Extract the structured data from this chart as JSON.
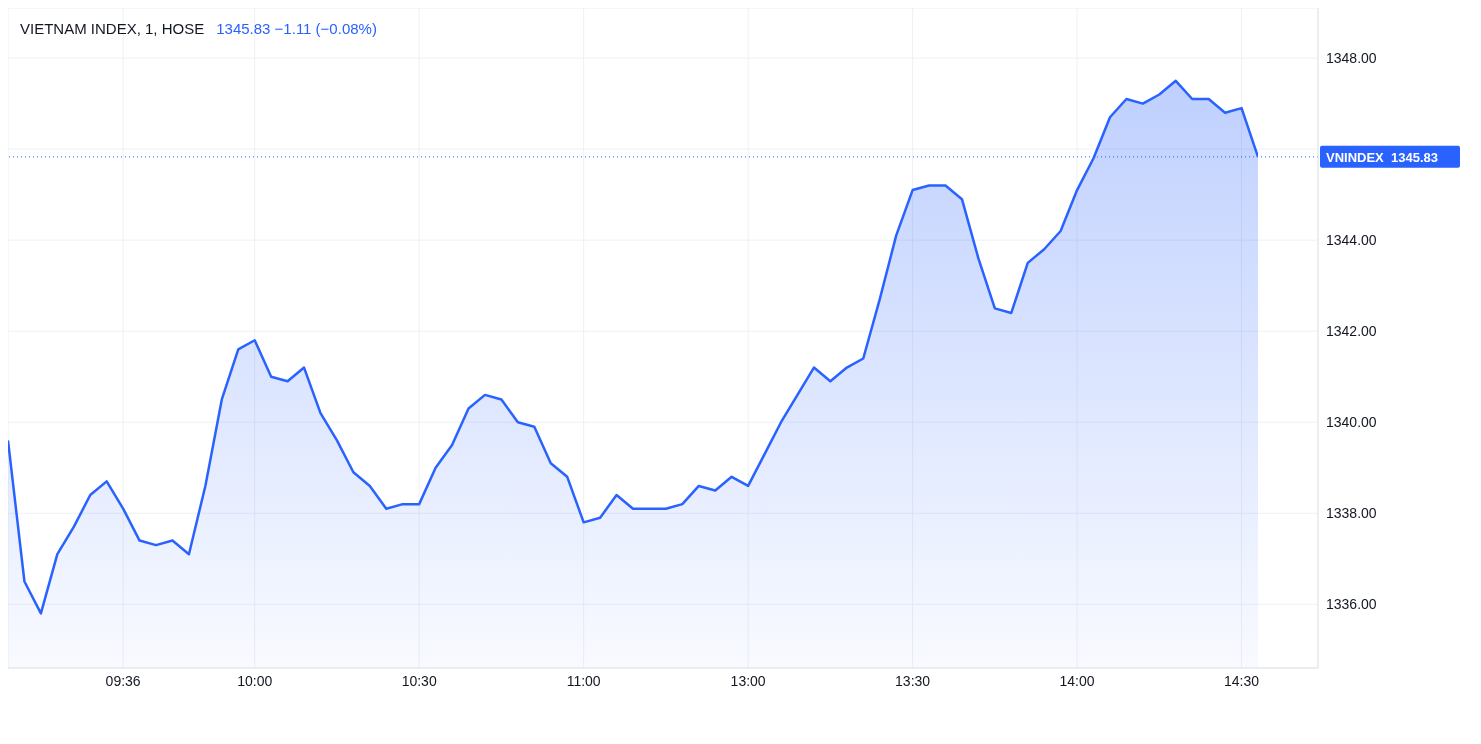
{
  "chart_data": {
    "type": "area",
    "title": "VIETNAM INDEX, 1, HOSE",
    "subtitle": "1345.83  −1.11 (−0.08%)",
    "categories": [
      null,
      null,
      null,
      null,
      null,
      null,
      null,
      "09:36",
      null,
      null,
      null,
      null,
      null,
      null,
      null,
      "10:00",
      null,
      null,
      null,
      null,
      null,
      null,
      null,
      null,
      null,
      "10:30",
      null,
      null,
      null,
      null,
      null,
      null,
      null,
      null,
      null,
      "11:00",
      null,
      null,
      null,
      null,
      null,
      null,
      null,
      null,
      null,
      "13:00",
      null,
      null,
      null,
      null,
      null,
      null,
      null,
      null,
      null,
      "13:30",
      null,
      null,
      null,
      null,
      null,
      null,
      null,
      null,
      null,
      "14:00",
      null,
      null,
      null,
      null,
      null,
      null,
      null,
      null,
      null,
      "14:30",
      null
    ],
    "series": [
      {
        "color": "#2962ff",
        "values": [
          1339.6,
          1336.5,
          1335.8,
          1337.1,
          1337.7,
          1338.4,
          1338.7,
          1338.1,
          1337.4,
          1337.3,
          1337.4,
          1337.1,
          1338.6,
          1340.5,
          1341.6,
          1341.8,
          1341.0,
          1340.9,
          1341.2,
          1340.2,
          1339.6,
          1338.9,
          1338.6,
          1338.1,
          1338.2,
          1338.2,
          1339.0,
          1339.5,
          1340.3,
          1340.6,
          1340.5,
          1340.0,
          1339.9,
          1339.1,
          1338.8,
          1337.8,
          1337.9,
          1338.4,
          1338.1,
          1338.1,
          1338.1,
          1338.2,
          1338.6,
          1338.5,
          1338.8,
          1338.6,
          1339.3,
          1340.0,
          1340.6,
          1341.2,
          1340.9,
          1341.2,
          1341.4,
          1342.7,
          1344.1,
          1345.1,
          1345.2,
          1345.2,
          1344.9,
          1343.6,
          1342.5,
          1342.4,
          1343.5,
          1343.8,
          1344.2,
          1345.1,
          1345.8,
          1346.7,
          1347.1,
          1347.0,
          1347.2,
          1347.5,
          1347.1,
          1347.1,
          1346.8,
          1346.9,
          1345.83
        ]
      }
    ],
    "ylim": [
      1334.6,
      1349.1
    ],
    "yticks": [
      {
        "value": 1336,
        "label": "1336.00"
      },
      {
        "value": 1338,
        "label": "1338.00"
      },
      {
        "value": 1340,
        "label": "1340.00"
      },
      {
        "value": 1342,
        "label": "1342.00"
      },
      {
        "value": 1344,
        "label": "1344.00"
      },
      {
        "value": 1346,
        "label": null
      },
      {
        "value": 1348,
        "label": "1348.00"
      }
    ],
    "grid": true,
    "legend": false,
    "marker": "none",
    "line_style": "solid",
    "ref_lines": [
      {
        "axis": "y",
        "value": 1345.83,
        "label": "VNINDEX  1345.83",
        "color": "#2962ff",
        "line_style": "dotted"
      }
    ]
  }
}
